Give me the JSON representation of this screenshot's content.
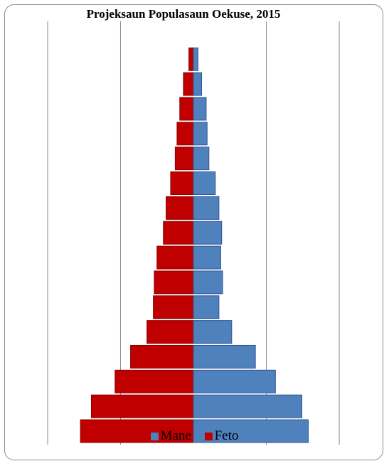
{
  "chart_data": {
    "type": "bar",
    "orientation": "horizontal-pyramid",
    "title": "Projeksaun Populasaun Oekuse, 2015",
    "xlim": [
      -8000,
      8000
    ],
    "grid": true,
    "legend": "bottom",
    "series": [
      {
        "name": "Mane",
        "color": "#4f81bd",
        "values": [
          6300,
          5950,
          4500,
          3400,
          2100,
          1400,
          1600,
          1500,
          1550,
          1400,
          1200,
          850,
          750,
          700,
          450,
          250
        ]
      },
      {
        "name": "Feto",
        "color": "#c00000",
        "values": [
          6200,
          5600,
          4300,
          3450,
          2550,
          2200,
          2150,
          2000,
          1650,
          1500,
          1250,
          1000,
          900,
          750,
          550,
          250
        ]
      }
    ]
  }
}
